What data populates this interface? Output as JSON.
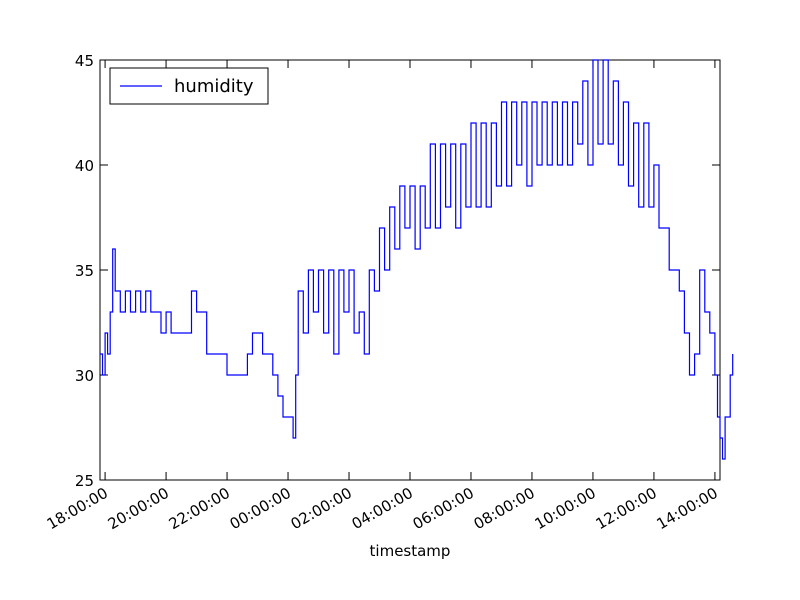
{
  "chart_data": {
    "type": "line",
    "title": "",
    "xlabel": "timestamp",
    "ylabel": "",
    "ylim": [
      25,
      45
    ],
    "yticks": [
      25,
      30,
      35,
      40,
      45
    ],
    "xlim": [
      "17:50:00",
      "14:10:00 (+1 day)"
    ],
    "xticks": [
      "18:00:00",
      "20:00:00",
      "22:00:00",
      "00:00:00",
      "02:00:00",
      "04:00:00",
      "06:00:00",
      "08:00:00",
      "10:00:00",
      "12:00:00",
      "14:00:00"
    ],
    "grid": false,
    "legend_position": "top-left",
    "colors": {
      "series": "#0000ff",
      "axes": "#000000"
    },
    "series": [
      {
        "name": "humidity",
        "points": [
          [
            "17:50",
            31
          ],
          [
            "17:55",
            30
          ],
          [
            "18:00",
            32
          ],
          [
            "18:05",
            31
          ],
          [
            "18:10",
            33
          ],
          [
            "18:15",
            36
          ],
          [
            "18:20",
            34
          ],
          [
            "18:30",
            33
          ],
          [
            "18:40",
            34
          ],
          [
            "18:50",
            33
          ],
          [
            "19:00",
            34
          ],
          [
            "19:10",
            33
          ],
          [
            "19:20",
            34
          ],
          [
            "19:30",
            33
          ],
          [
            "19:40",
            33
          ],
          [
            "19:50",
            32
          ],
          [
            "20:00",
            33
          ],
          [
            "20:10",
            32
          ],
          [
            "20:20",
            32
          ],
          [
            "20:40",
            32
          ],
          [
            "20:50",
            34
          ],
          [
            "21:00",
            33
          ],
          [
            "21:10",
            33
          ],
          [
            "21:20",
            31
          ],
          [
            "21:40",
            31
          ],
          [
            "22:00",
            30
          ],
          [
            "22:20",
            30
          ],
          [
            "22:40",
            31
          ],
          [
            "22:50",
            32
          ],
          [
            "23:00",
            32
          ],
          [
            "23:10",
            31
          ],
          [
            "23:20",
            31
          ],
          [
            "23:30",
            30
          ],
          [
            "23:40",
            29
          ],
          [
            "23:50",
            28
          ],
          [
            "00:00",
            28
          ],
          [
            "00:10",
            27
          ],
          [
            "00:15",
            30
          ],
          [
            "00:20",
            34
          ],
          [
            "00:30",
            32
          ],
          [
            "00:40",
            35
          ],
          [
            "00:50",
            33
          ],
          [
            "01:00",
            35
          ],
          [
            "01:10",
            32
          ],
          [
            "01:20",
            35
          ],
          [
            "01:30",
            31
          ],
          [
            "01:40",
            35
          ],
          [
            "01:50",
            33
          ],
          [
            "02:00",
            35
          ],
          [
            "02:10",
            32
          ],
          [
            "02:20",
            33
          ],
          [
            "02:30",
            31
          ],
          [
            "02:40",
            35
          ],
          [
            "02:50",
            34
          ],
          [
            "03:00",
            37
          ],
          [
            "03:10",
            35
          ],
          [
            "03:20",
            38
          ],
          [
            "03:30",
            36
          ],
          [
            "03:40",
            39
          ],
          [
            "03:50",
            37
          ],
          [
            "04:00",
            39
          ],
          [
            "04:10",
            36
          ],
          [
            "04:20",
            39
          ],
          [
            "04:30",
            37
          ],
          [
            "04:40",
            41
          ],
          [
            "04:50",
            37
          ],
          [
            "05:00",
            41
          ],
          [
            "05:10",
            38
          ],
          [
            "05:20",
            41
          ],
          [
            "05:30",
            37
          ],
          [
            "05:40",
            41
          ],
          [
            "05:50",
            38
          ],
          [
            "06:00",
            42
          ],
          [
            "06:10",
            38
          ],
          [
            "06:20",
            42
          ],
          [
            "06:30",
            38
          ],
          [
            "06:40",
            42
          ],
          [
            "06:50",
            39
          ],
          [
            "07:00",
            43
          ],
          [
            "07:10",
            39
          ],
          [
            "07:20",
            43
          ],
          [
            "07:30",
            40
          ],
          [
            "07:40",
            43
          ],
          [
            "07:50",
            39
          ],
          [
            "08:00",
            43
          ],
          [
            "08:10",
            40
          ],
          [
            "08:20",
            43
          ],
          [
            "08:30",
            40
          ],
          [
            "08:40",
            43
          ],
          [
            "08:50",
            40
          ],
          [
            "09:00",
            43
          ],
          [
            "09:10",
            40
          ],
          [
            "09:20",
            43
          ],
          [
            "09:30",
            41
          ],
          [
            "09:40",
            44
          ],
          [
            "09:50",
            40
          ],
          [
            "10:00",
            45
          ],
          [
            "10:10",
            41
          ],
          [
            "10:20",
            45
          ],
          [
            "10:30",
            41
          ],
          [
            "10:40",
            44
          ],
          [
            "10:50",
            40
          ],
          [
            "11:00",
            43
          ],
          [
            "11:10",
            39
          ],
          [
            "11:20",
            42
          ],
          [
            "11:30",
            38
          ],
          [
            "11:40",
            42
          ],
          [
            "11:50",
            38
          ],
          [
            "12:00",
            40
          ],
          [
            "12:10",
            37
          ],
          [
            "12:20",
            37
          ],
          [
            "12:30",
            35
          ],
          [
            "12:40",
            35
          ],
          [
            "12:50",
            34
          ],
          [
            "13:00",
            32
          ],
          [
            "13:10",
            30
          ],
          [
            "13:20",
            31
          ],
          [
            "13:30",
            35
          ],
          [
            "13:40",
            33
          ],
          [
            "13:50",
            32
          ],
          [
            "14:00",
            30
          ],
          [
            "14:05",
            28
          ],
          [
            "14:10",
            27
          ],
          [
            "14:15",
            26
          ],
          [
            "14:20",
            28
          ],
          [
            "14:30",
            30
          ],
          [
            "14:35",
            31
          ]
        ]
      }
    ]
  }
}
